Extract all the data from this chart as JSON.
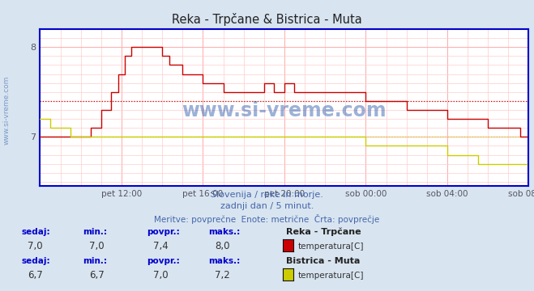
{
  "title": "Reka - Trpčane & Bistrica - Muta",
  "background_color": "#d8e4f0",
  "plot_bg_color": "#ffffff",
  "watermark": "www.si-vreme.com",
  "subtitle1": "Slovenija / reke in morje.",
  "subtitle2": "zadnji dan / 5 minut.",
  "subtitle3": "Meritve: povprečne  Enote: metrične  Črta: povprečje",
  "legend1_title": "Reka - Trpčane",
  "legend1_label": "temperatura[C]",
  "legend1_color": "#cc0000",
  "legend2_title": "Bistrica - Muta",
  "legend2_label": "temperatura[C]",
  "legend2_color": "#cccc00",
  "stats1": {
    "sedaj": "7,0",
    "min": "7,0",
    "povpr": "7,4",
    "maks": "8,0"
  },
  "stats2": {
    "sedaj": "6,7",
    "min": "6,7",
    "povpr": "7,0",
    "maks": "7,2"
  },
  "avg1": 7.4,
  "avg2": 7.0,
  "ylim": [
    6.45,
    8.2
  ],
  "yticks": [
    7.0,
    8.0
  ],
  "axis_color": "#0000cc",
  "tick_color": "#555555",
  "watermark_color": "#2255aa",
  "left_watermark_color": "#6688bb",
  "tick_label_color": "#555566",
  "subtitle_color": "#4466aa",
  "stats_header_color": "#0000cc",
  "stats_value_color": "#333333"
}
